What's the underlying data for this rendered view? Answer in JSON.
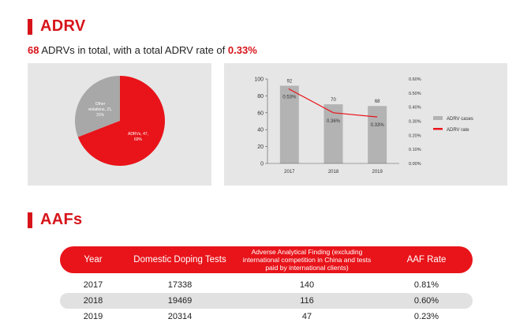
{
  "adrv": {
    "title": "ADRV",
    "summary": {
      "count": "68",
      "middle": " ADRVs in total, with a total ADRV rate of ",
      "rate": "0.33%"
    }
  },
  "pie": {
    "slices": [
      {
        "label": "ADRVs, 47, 69%",
        "line1": "ADRVs, 47,",
        "line2": "69%",
        "value": 47,
        "percent": 69,
        "color": "#e8141a"
      },
      {
        "label": "Other violations, 21, 31%",
        "line1": "Other",
        "line2": "violations, 21,",
        "line3": "31%",
        "value": 21,
        "percent": 31,
        "color": "#a8a8a8"
      }
    ]
  },
  "chart_data": {
    "type": "bar",
    "title": "",
    "categories": [
      "2017",
      "2018",
      "2019"
    ],
    "series": [
      {
        "name": "ADRV cases",
        "type": "bar",
        "values": [
          92,
          70,
          68
        ],
        "labels": [
          "92",
          "70",
          "68"
        ],
        "color": "#b3b3b3"
      },
      {
        "name": "ADRV rate",
        "type": "line",
        "values": [
          0.53,
          0.36,
          0.33
        ],
        "labels": [
          "0.53%",
          "0.36%",
          "0.33%"
        ],
        "color": "#e8141a"
      }
    ],
    "ylim": [
      0,
      100
    ],
    "yticks": [
      "0",
      "20",
      "40",
      "60",
      "80",
      "100"
    ],
    "y2lim": [
      0,
      0.6
    ],
    "y2ticks": [
      "0.00%",
      "0.10%",
      "0.20%",
      "0.30%",
      "0.40%",
      "0.50%",
      "0.60%"
    ],
    "legend": [
      "ADRV cases",
      "ADRV rate"
    ]
  },
  "aafs": {
    "title": "AAFs",
    "headers": [
      "Year",
      "Domestic Doping Tests",
      "Adverse Analytical Finding (excluding international competition in China and tests paid by international clients)",
      "AAF Rate"
    ],
    "rows": [
      [
        "2017",
        "17338",
        "140",
        "0.81%"
      ],
      [
        "2018",
        "19469",
        "116",
        "0.60%"
      ],
      [
        "2019",
        "20314",
        "47",
        "0.23%"
      ]
    ]
  }
}
